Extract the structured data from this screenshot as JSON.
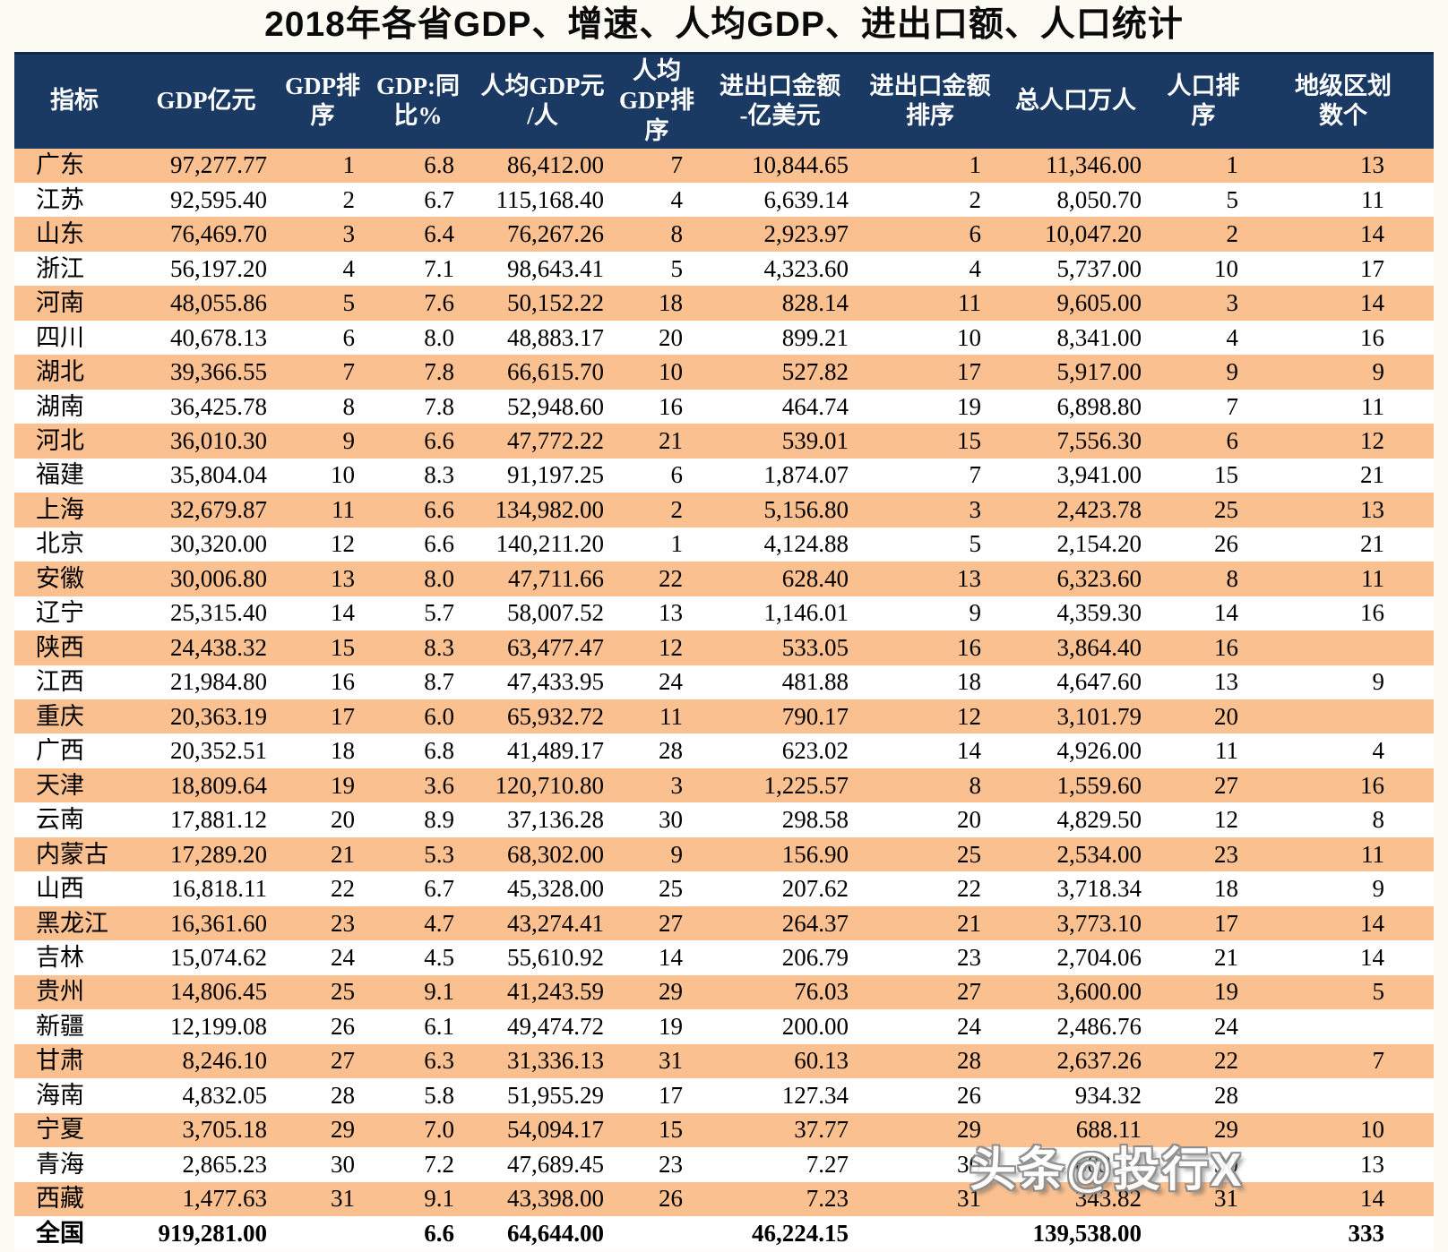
{
  "title": "2018年各省GDP、增速、人均GDP、进出口额、人口统计",
  "watermark": "头条@投行X",
  "colors": {
    "header_bg": "#1B3A63",
    "stripe_row": "#FAC08F",
    "plain_row": "#FFFFFF",
    "header_text": "#FFFFFF",
    "body_text": "#000000"
  },
  "table": {
    "columns": [
      {
        "id": "indicator",
        "label": "指标"
      },
      {
        "id": "gdp",
        "label": "GDP亿元"
      },
      {
        "id": "gdp_rank",
        "label": "GDP排\n序"
      },
      {
        "id": "gdp_yoy",
        "label": "GDP:同\n比%"
      },
      {
        "id": "gdp_per_capita",
        "label": "人均GDP元\n/人"
      },
      {
        "id": "gdp_pc_rank",
        "label": "人均\nGDP排\n序"
      },
      {
        "id": "trade_amount",
        "label": "进出口金额\n-亿美元"
      },
      {
        "id": "trade_rank",
        "label": "进出口金额\n排序"
      },
      {
        "id": "population",
        "label": "总人口万人"
      },
      {
        "id": "pop_rank",
        "label": "人口排\n序"
      },
      {
        "id": "divisions",
        "label": "地级区划\n数个"
      }
    ],
    "rows": [
      {
        "province": "广东",
        "values": [
          "97,277.77",
          "1",
          "6.8",
          "86,412.00",
          "7",
          "10,844.65",
          "1",
          "11,346.00",
          "1",
          "13"
        ]
      },
      {
        "province": "江苏",
        "values": [
          "92,595.40",
          "2",
          "6.7",
          "115,168.40",
          "4",
          "6,639.14",
          "2",
          "8,050.70",
          "5",
          "11"
        ]
      },
      {
        "province": "山东",
        "values": [
          "76,469.70",
          "3",
          "6.4",
          "76,267.26",
          "8",
          "2,923.97",
          "6",
          "10,047.20",
          "2",
          "14"
        ]
      },
      {
        "province": "浙江",
        "values": [
          "56,197.20",
          "4",
          "7.1",
          "98,643.41",
          "5",
          "4,323.60",
          "4",
          "5,737.00",
          "10",
          "17"
        ]
      },
      {
        "province": "河南",
        "values": [
          "48,055.86",
          "5",
          "7.6",
          "50,152.22",
          "18",
          "828.14",
          "11",
          "9,605.00",
          "3",
          "14"
        ]
      },
      {
        "province": "四川",
        "values": [
          "40,678.13",
          "6",
          "8.0",
          "48,883.17",
          "20",
          "899.21",
          "10",
          "8,341.00",
          "4",
          "16"
        ]
      },
      {
        "province": "湖北",
        "values": [
          "39,366.55",
          "7",
          "7.8",
          "66,615.70",
          "10",
          "527.82",
          "17",
          "5,917.00",
          "9",
          "9"
        ]
      },
      {
        "province": "湖南",
        "values": [
          "36,425.78",
          "8",
          "7.8",
          "52,948.60",
          "16",
          "464.74",
          "19",
          "6,898.80",
          "7",
          "11"
        ]
      },
      {
        "province": "河北",
        "values": [
          "36,010.30",
          "9",
          "6.6",
          "47,772.22",
          "21",
          "539.01",
          "15",
          "7,556.30",
          "6",
          "12"
        ]
      },
      {
        "province": "福建",
        "values": [
          "35,804.04",
          "10",
          "8.3",
          "91,197.25",
          "6",
          "1,874.07",
          "7",
          "3,941.00",
          "15",
          "21"
        ]
      },
      {
        "province": "上海",
        "values": [
          "32,679.87",
          "11",
          "6.6",
          "134,982.00",
          "2",
          "5,156.80",
          "3",
          "2,423.78",
          "25",
          "13"
        ]
      },
      {
        "province": "北京",
        "values": [
          "30,320.00",
          "12",
          "6.6",
          "140,211.20",
          "1",
          "4,124.88",
          "5",
          "2,154.20",
          "26",
          "21"
        ]
      },
      {
        "province": "安徽",
        "values": [
          "30,006.80",
          "13",
          "8.0",
          "47,711.66",
          "22",
          "628.40",
          "13",
          "6,323.60",
          "8",
          "11"
        ]
      },
      {
        "province": "辽宁",
        "values": [
          "25,315.40",
          "14",
          "5.7",
          "58,007.52",
          "13",
          "1,146.01",
          "9",
          "4,359.30",
          "14",
          "16"
        ]
      },
      {
        "province": "陕西",
        "values": [
          "24,438.32",
          "15",
          "8.3",
          "63,477.47",
          "12",
          "533.05",
          "16",
          "3,864.40",
          "16",
          ""
        ]
      },
      {
        "province": "江西",
        "values": [
          "21,984.80",
          "16",
          "8.7",
          "47,433.95",
          "24",
          "481.88",
          "18",
          "4,647.60",
          "13",
          "9"
        ]
      },
      {
        "province": "重庆",
        "values": [
          "20,363.19",
          "17",
          "6.0",
          "65,932.72",
          "11",
          "790.17",
          "12",
          "3,101.79",
          "20",
          ""
        ]
      },
      {
        "province": "广西",
        "values": [
          "20,352.51",
          "18",
          "6.8",
          "41,489.17",
          "28",
          "623.02",
          "14",
          "4,926.00",
          "11",
          "4"
        ]
      },
      {
        "province": "天津",
        "values": [
          "18,809.64",
          "19",
          "3.6",
          "120,710.80",
          "3",
          "1,225.57",
          "8",
          "1,559.60",
          "27",
          "16"
        ]
      },
      {
        "province": "云南",
        "values": [
          "17,881.12",
          "20",
          "8.9",
          "37,136.28",
          "30",
          "298.58",
          "20",
          "4,829.50",
          "12",
          "8"
        ]
      },
      {
        "province": "内蒙古",
        "values": [
          "17,289.20",
          "21",
          "5.3",
          "68,302.00",
          "9",
          "156.90",
          "25",
          "2,534.00",
          "23",
          "11"
        ]
      },
      {
        "province": "山西",
        "values": [
          "16,818.11",
          "22",
          "6.7",
          "45,328.00",
          "25",
          "207.62",
          "22",
          "3,718.34",
          "18",
          "9"
        ]
      },
      {
        "province": "黑龙江",
        "values": [
          "16,361.60",
          "23",
          "4.7",
          "43,274.41",
          "27",
          "264.37",
          "21",
          "3,773.10",
          "17",
          "14"
        ]
      },
      {
        "province": "吉林",
        "values": [
          "15,074.62",
          "24",
          "4.5",
          "55,610.92",
          "14",
          "206.79",
          "23",
          "2,704.06",
          "21",
          "14"
        ]
      },
      {
        "province": "贵州",
        "values": [
          "14,806.45",
          "25",
          "9.1",
          "41,243.59",
          "29",
          "76.03",
          "27",
          "3,600.00",
          "19",
          "5"
        ]
      },
      {
        "province": "新疆",
        "values": [
          "12,199.08",
          "26",
          "6.1",
          "49,474.72",
          "19",
          "200.00",
          "24",
          "2,486.76",
          "24",
          ""
        ]
      },
      {
        "province": "甘肃",
        "values": [
          "8,246.10",
          "27",
          "6.3",
          "31,336.13",
          "31",
          "60.13",
          "28",
          "2,637.26",
          "22",
          "7"
        ]
      },
      {
        "province": "海南",
        "values": [
          "4,832.05",
          "28",
          "5.8",
          "51,955.29",
          "17",
          "127.34",
          "26",
          "934.32",
          "28",
          ""
        ]
      },
      {
        "province": "宁夏",
        "values": [
          "3,705.18",
          "29",
          "7.0",
          "54,094.17",
          "15",
          "37.77",
          "29",
          "688.11",
          "29",
          "10"
        ]
      },
      {
        "province": "青海",
        "values": [
          "2,865.23",
          "30",
          "7.2",
          "47,689.45",
          "23",
          "7.27",
          "30",
          "603.23",
          "30",
          "13"
        ]
      },
      {
        "province": "西藏",
        "values": [
          "1,477.63",
          "31",
          "9.1",
          "43,398.00",
          "26",
          "7.23",
          "31",
          "343.82",
          "31",
          "14"
        ]
      },
      {
        "province": "全国",
        "values": [
          "919,281.00",
          "",
          "6.6",
          "64,644.00",
          "",
          "46,224.15",
          "",
          "139,538.00",
          "",
          "333"
        ],
        "total": true
      }
    ]
  }
}
